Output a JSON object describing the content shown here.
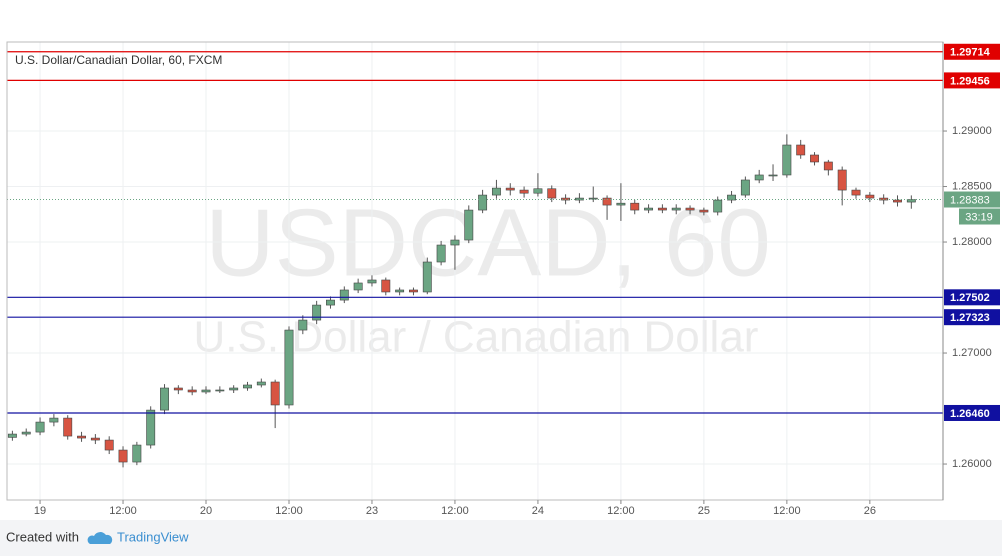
{
  "chart_data": {
    "type": "candlestick",
    "header": "U.S. Dollar/Canadian Dollar, 60, FXCM",
    "watermark": "USDCAD, 60",
    "watermark_subtitle": "U.S. Dollar / Canadian Dollar",
    "countdown": "33:19",
    "footer_prefix": "Created with",
    "footer_brand": "TradingView",
    "up_color": "#6ba583",
    "down_color": "#d75442",
    "xlim": [
      -0.39,
      67.29
    ],
    "ylim": [
      1.25676,
      1.29802
    ],
    "grid": true,
    "xticks": [
      {
        "value": 2,
        "label": "19"
      },
      {
        "value": 8,
        "label": "12:00"
      },
      {
        "value": 14,
        "label": "20"
      },
      {
        "value": 20,
        "label": "12:00"
      },
      {
        "value": 26,
        "label": "23"
      },
      {
        "value": 32,
        "label": "12:00"
      },
      {
        "value": 38,
        "label": "24"
      },
      {
        "value": 44,
        "label": "12:00"
      },
      {
        "value": 50,
        "label": "25"
      },
      {
        "value": 56,
        "label": "12:00"
      },
      {
        "value": 62,
        "label": "26"
      }
    ],
    "yticks": [
      {
        "value": 1.29,
        "label": "1.29000"
      },
      {
        "value": 1.285,
        "label": "1.28500"
      },
      {
        "value": 1.28,
        "label": "1.28000"
      },
      {
        "value": 1.27,
        "label": "1.27000"
      },
      {
        "value": 1.26,
        "label": "1.26000"
      }
    ],
    "levels": [
      {
        "value": 1.29714,
        "color": "#e00000"
      },
      {
        "value": 1.29456,
        "color": "#e00000"
      },
      {
        "value": 1.27502,
        "color": "#1010a0"
      },
      {
        "value": 1.27323,
        "color": "#1010a0"
      },
      {
        "value": 1.2646,
        "label": "1.26460",
        "color": "#1010a0"
      }
    ],
    "open": [
      1.2624,
      1.2627,
      1.26288,
      1.26378,
      1.26414,
      1.26252,
      1.26234,
      1.26216,
      1.26126,
      1.26018,
      1.26171,
      1.26486,
      1.26685,
      1.26667,
      1.26649,
      1.26667,
      1.26667,
      1.26685,
      1.26712,
      1.26739,
      1.26532,
      1.27207,
      1.27297,
      1.27432,
      1.27477,
      1.27568,
      1.27631,
      1.27658,
      1.2755,
      1.27568,
      1.2755,
      1.2782,
      1.27973,
      1.28018,
      1.28288,
      1.28423,
      1.28486,
      1.28468,
      1.2844,
      1.2848,
      1.28396,
      1.28378,
      1.28396,
      1.28396,
      1.28333,
      1.2835,
      1.28288,
      1.28306,
      1.28288,
      1.28306,
      1.28288,
      1.2827,
      1.28378,
      1.28423,
      1.28559,
      1.28604,
      1.28604,
      1.28874,
      1.28784,
      1.28721,
      1.28649,
      1.28468,
      1.28423,
      1.28396,
      1.28378,
      1.2836
    ],
    "high": [
      1.263,
      1.2632,
      1.2642,
      1.2645,
      1.2644,
      1.2629,
      1.2627,
      1.2625,
      1.2616,
      1.262,
      1.2652,
      1.2672,
      1.2671,
      1.267,
      1.267,
      1.267,
      1.2671,
      1.2674,
      1.2677,
      1.2676,
      1.2724,
      1.2734,
      1.2747,
      1.2751,
      1.276,
      1.2767,
      1.277,
      1.2768,
      1.2759,
      1.2759,
      1.2786,
      1.2801,
      1.2806,
      1.2833,
      1.2847,
      1.2856,
      1.2853,
      1.285,
      1.2862,
      1.2851,
      1.2843,
      1.2844,
      1.285,
      1.2842,
      1.2853,
      1.2838,
      1.2834,
      1.2834,
      1.2834,
      1.2833,
      1.2831,
      1.2841,
      1.2846,
      1.2859,
      1.2865,
      1.287,
      1.2897,
      1.2892,
      1.2881,
      1.2874,
      1.2868,
      1.2849,
      1.2845,
      1.2843,
      1.2842,
      1.2842
    ],
    "low": [
      1.2621,
      1.2625,
      1.2626,
      1.2634,
      1.2622,
      1.262,
      1.2618,
      1.2609,
      1.2597,
      1.2599,
      1.2614,
      1.2645,
      1.2663,
      1.2662,
      1.2663,
      1.2664,
      1.2664,
      1.2666,
      1.2669,
      1.26324,
      1.265,
      1.2717,
      1.2726,
      1.274,
      1.2745,
      1.2754,
      1.276,
      1.2752,
      1.2752,
      1.2752,
      1.2753,
      1.2779,
      1.2775,
      1.2799,
      1.2826,
      1.2839,
      1.2842,
      1.284,
      1.2841,
      1.2836,
      1.2834,
      1.2835,
      1.2836,
      1.282,
      1.2819,
      1.2825,
      1.2826,
      1.2826,
      1.2825,
      1.2825,
      1.2824,
      1.2824,
      1.2835,
      1.284,
      1.2853,
      1.2855,
      1.2858,
      1.2875,
      1.2869,
      1.286,
      1.2833,
      1.2839,
      1.2836,
      1.2834,
      1.2832,
      1.283
    ],
    "close": [
      1.2627,
      1.26288,
      1.26378,
      1.26414,
      1.26252,
      1.26234,
      1.26216,
      1.26126,
      1.26018,
      1.26171,
      1.26486,
      1.26685,
      1.26667,
      1.26649,
      1.26667,
      1.26667,
      1.26685,
      1.26712,
      1.26739,
      1.26532,
      1.27207,
      1.27297,
      1.27432,
      1.27477,
      1.27568,
      1.27631,
      1.27658,
      1.2755,
      1.27568,
      1.2755,
      1.2782,
      1.27973,
      1.28018,
      1.28288,
      1.28423,
      1.28486,
      1.28468,
      1.2844,
      1.2848,
      1.28396,
      1.28378,
      1.28396,
      1.28396,
      1.28333,
      1.2835,
      1.28288,
      1.28306,
      1.28288,
      1.28306,
      1.28288,
      1.2827,
      1.28378,
      1.28423,
      1.28559,
      1.28604,
      1.28604,
      1.28874,
      1.28784,
      1.28721,
      1.28649,
      1.28468,
      1.28423,
      1.28396,
      1.28378,
      1.2836,
      1.28383
    ]
  }
}
